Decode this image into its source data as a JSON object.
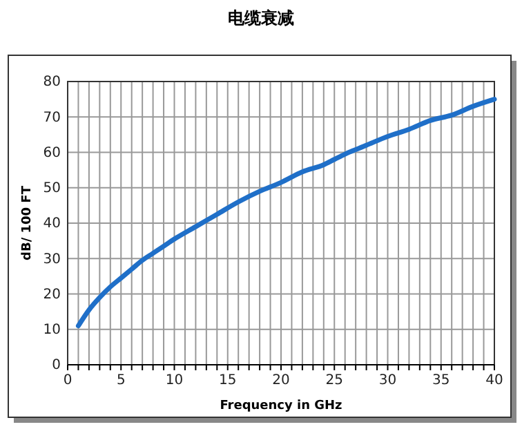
{
  "chart_data": {
    "type": "line",
    "title": "电缆衰减",
    "xlabel": "Frequency in GHz",
    "ylabel": "dB/ 100 FT",
    "x": [
      1,
      2,
      3,
      4,
      5,
      6,
      7,
      8,
      9,
      10,
      12,
      14,
      16,
      18,
      20,
      22,
      24,
      25,
      26,
      28,
      30,
      32,
      34,
      36,
      38,
      40
    ],
    "series": [
      {
        "color": "#1f6fc8",
        "values": [
          11,
          15.5,
          19,
          22,
          24.5,
          27,
          29.5,
          31.5,
          33.5,
          35.5,
          39,
          42.5,
          46,
          49,
          51.5,
          54.5,
          56.5,
          58,
          59.5,
          62,
          64.5,
          66.5,
          69,
          70.5,
          73,
          75
        ]
      }
    ],
    "xlim": [
      0,
      40
    ],
    "ylim": [
      0,
      80
    ],
    "xticks": [
      0,
      {
        "value": 1,
        "label": null
      },
      {
        "value": 2,
        "label": null
      },
      {
        "value": 3,
        "label": null
      },
      {
        "value": 4,
        "label": null
      },
      5,
      {
        "value": 6,
        "label": null
      },
      {
        "value": 7,
        "label": null
      },
      {
        "value": 8,
        "label": null
      },
      {
        "value": 9,
        "label": null
      },
      10,
      {
        "value": 11,
        "label": null
      },
      {
        "value": 12,
        "label": null
      },
      {
        "value": 13,
        "label": null
      },
      {
        "value": 14,
        "label": null
      },
      15,
      {
        "value": 16,
        "label": null
      },
      {
        "value": 17,
        "label": null
      },
      {
        "value": 18,
        "label": null
      },
      {
        "value": 19,
        "label": null
      },
      20,
      {
        "value": 21,
        "label": null
      },
      {
        "value": 22,
        "label": null
      },
      {
        "value": 23,
        "label": null
      },
      {
        "value": 24,
        "label": null
      },
      25,
      {
        "value": 26,
        "label": null
      },
      {
        "value": 27,
        "label": null
      },
      {
        "value": 28,
        "label": null
      },
      {
        "value": 29,
        "label": null
      },
      30,
      {
        "value": 31,
        "label": null
      },
      {
        "value": 32,
        "label": null
      },
      {
        "value": 33,
        "label": null
      },
      {
        "value": 34,
        "label": null
      },
      35,
      {
        "value": 36,
        "label": null
      },
      {
        "value": 37,
        "label": null
      },
      {
        "value": 38,
        "label": null
      },
      {
        "value": 39,
        "label": null
      },
      40
    ],
    "yticks": [
      0,
      10,
      20,
      30,
      40,
      50,
      60,
      70,
      80
    ],
    "grid": true,
    "marker": "none",
    "line_style": "solid"
  }
}
